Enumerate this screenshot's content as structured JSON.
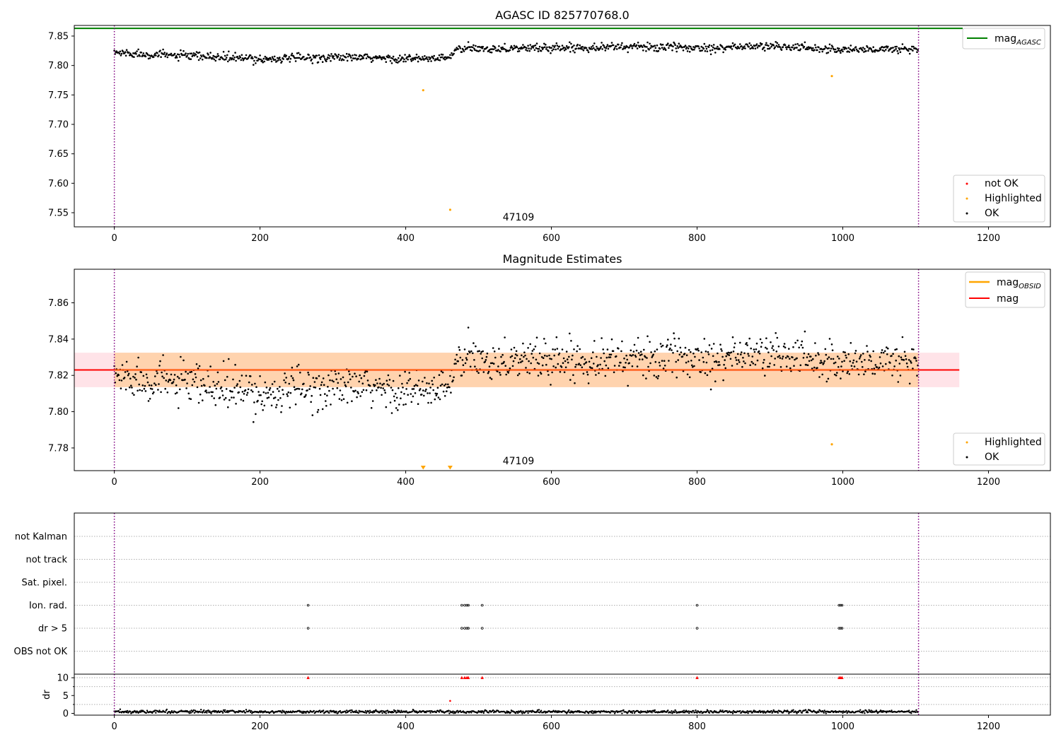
{
  "chart_data": [
    {
      "type": "scatter",
      "title": "AGASC ID 825770768.0",
      "xlim": [
        -55,
        1285
      ],
      "ylim": [
        7.526,
        7.868
      ],
      "xticks": [
        0,
        200,
        400,
        600,
        800,
        1000,
        1200
      ],
      "yticks": [
        7.55,
        7.6,
        7.65,
        7.7,
        7.75,
        7.8,
        7.85
      ],
      "ytick_labels": [
        "7.55",
        "7.60",
        "7.65",
        "7.70",
        "7.75",
        "7.80",
        "7.85"
      ],
      "annotation": "47109",
      "annotation_x": 550,
      "vlines": [
        0,
        1104
      ],
      "hlines": [
        {
          "name": "mag_AGASC",
          "y": 7.863,
          "color": "#008000"
        }
      ],
      "series": [
        {
          "name": "not OK",
          "color": "#ff0000",
          "points": []
        },
        {
          "name": "Highlighted",
          "color": "#ffa500",
          "points": [
            [
              424,
              7.758
            ],
            [
              461,
              7.555
            ],
            [
              985,
              7.782
            ]
          ]
        },
        {
          "name": "OK",
          "color": "#000000",
          "n_points": 1104,
          "trend": [
            [
              0,
              7.822
            ],
            [
              100,
              7.816
            ],
            [
              200,
              7.811
            ],
            [
              300,
              7.814
            ],
            [
              420,
              7.811
            ],
            [
              460,
              7.813
            ],
            [
              470,
              7.828
            ],
            [
              600,
              7.83
            ],
            [
              700,
              7.832
            ],
            [
              800,
              7.83
            ],
            [
              900,
              7.833
            ],
            [
              1000,
              7.827
            ],
            [
              1104,
              7.828
            ]
          ],
          "spread": 0.005
        }
      ],
      "legend": [
        {
          "label": "mag",
          "sub": "AGASC",
          "kind": "line",
          "color": "#008000",
          "position": "top-right"
        },
        {
          "label": "not OK",
          "kind": "marker",
          "color": "#ff0000",
          "position": "bottom-right"
        },
        {
          "label": "Highlighted",
          "kind": "marker",
          "color": "#ffa500",
          "position": "bottom-right"
        },
        {
          "label": "OK",
          "kind": "marker",
          "color": "#000000",
          "position": "bottom-right"
        }
      ]
    },
    {
      "type": "scatter",
      "title": "Magnitude Estimates",
      "xlim": [
        -55,
        1285
      ],
      "ylim": [
        7.7675,
        7.8785
      ],
      "xticks": [
        0,
        200,
        400,
        600,
        800,
        1000,
        1200
      ],
      "yticks": [
        7.78,
        7.8,
        7.82,
        7.84,
        7.86
      ],
      "ytick_labels": [
        "7.78",
        "7.80",
        "7.82",
        "7.84",
        "7.86"
      ],
      "annotation": "47109",
      "annotation_x": 550,
      "vlines": [
        0,
        1104
      ],
      "mag": 7.823,
      "mag_obsid": 7.823,
      "band_outer": [
        7.8135,
        7.8325
      ],
      "band_inner": [
        7.8135,
        7.8325
      ],
      "band_x": [
        -55,
        1160
      ],
      "band_inner_x": [
        0,
        1104
      ],
      "series": [
        {
          "name": "Highlighted",
          "color": "#ffa500",
          "points": [
            [
              985,
              7.782
            ]
          ],
          "offscale_points": [
            424,
            461
          ]
        },
        {
          "name": "OK",
          "color": "#000000",
          "n_points": 1104,
          "trend": [
            [
              0,
              7.82
            ],
            [
              100,
              7.815
            ],
            [
              200,
              7.81
            ],
            [
              300,
              7.814
            ],
            [
              420,
              7.811
            ],
            [
              460,
              7.813
            ],
            [
              470,
              7.828
            ],
            [
              600,
              7.829
            ],
            [
              700,
              7.829
            ],
            [
              800,
              7.83
            ],
            [
              900,
              7.832
            ],
            [
              1000,
              7.827
            ],
            [
              1104,
              7.828
            ]
          ],
          "spread": 0.005
        }
      ],
      "legend": [
        {
          "label": "mag",
          "sub": "OBSID",
          "kind": "line",
          "color": "#ffa500",
          "position": "top-right"
        },
        {
          "label": "mag",
          "kind": "line",
          "color": "#ff0000",
          "position": "top-right"
        },
        {
          "label": "Highlighted",
          "kind": "marker",
          "color": "#ffa500",
          "position": "bottom-right"
        },
        {
          "label": "OK",
          "kind": "marker",
          "color": "#000000",
          "position": "bottom-right"
        }
      ]
    },
    {
      "type": "scatter",
      "title": "",
      "xlim": [
        -55,
        1285
      ],
      "categories": [
        "not Kalman",
        "not track",
        "Sat. pixel.",
        "Ion. rad.",
        "dr > 5",
        "OBS not OK"
      ],
      "flag_points": {
        "Ion. rad.": [
          266,
          477,
          481,
          484,
          486,
          505,
          800,
          995,
          997,
          999
        ],
        "dr > 5": [
          266,
          477,
          481,
          484,
          486,
          505,
          800,
          995,
          997,
          999
        ]
      },
      "vlines": [
        0,
        1104
      ]
    },
    {
      "type": "scatter",
      "title": "",
      "ylabel": "dr",
      "xlim": [
        -55,
        1285
      ],
      "ylim": [
        -0.5,
        11
      ],
      "xticks": [
        0,
        200,
        400,
        600,
        800,
        1000,
        1200
      ],
      "yticks": [
        0,
        5,
        10
      ],
      "ytick_labels": [
        "0",
        "5",
        "10"
      ],
      "vlines": [
        0,
        1104
      ],
      "capped_points": [
        266,
        477,
        481,
        484,
        486,
        505,
        800,
        995,
        997,
        999
      ],
      "cap_value": 10,
      "red_points": [
        [
          461,
          3.5
        ]
      ],
      "baseline_mean": 0.45,
      "baseline_spread": 0.2,
      "n_points": 1104
    }
  ]
}
